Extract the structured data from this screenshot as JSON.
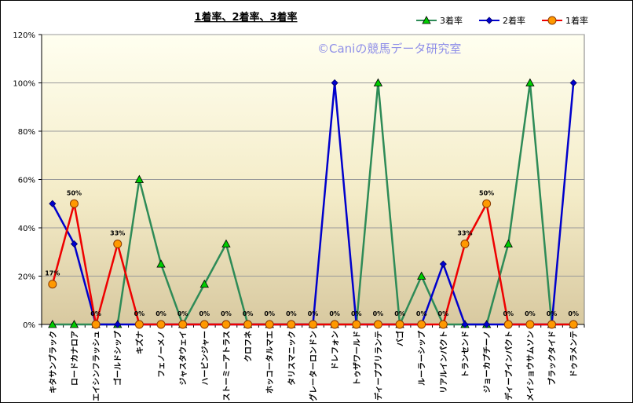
{
  "chart_data": {
    "type": "line",
    "title": "1着率、2着率、3着率",
    "watermark": "©Caniの競馬データ研究室",
    "ylim": [
      0,
      1.2
    ],
    "yticks": [
      0,
      0.2,
      0.4,
      0.6,
      0.8,
      1.0,
      1.2
    ],
    "ytick_labels": [
      "0%",
      "20%",
      "40%",
      "60%",
      "80%",
      "100%",
      "120%"
    ],
    "legend_position": "top-right",
    "grid": true,
    "categories": [
      "キタサンブラック",
      "ロードカナロア",
      "エイシンフラッシュ",
      "ゴールドシップ",
      "キズナ",
      "フェノーメノ",
      "ジャスタウェイ",
      "ハービンジャー",
      "ストーミーアトラス",
      "クロフネ",
      "ホッコータルマエ",
      "タリスマニック",
      "グレーターロンドン",
      "ドレフォン",
      "トゥザワールド",
      "ディープブリランテ",
      "バゴ",
      "ルーラーシップ",
      "リアルインパクト",
      "トランセンド",
      "ジョーカプチーノ",
      "ディープインパクト",
      "メイショウサムソン",
      "ブラックタイド",
      "ドゥラメンテ"
    ],
    "series": [
      {
        "name": "3着率",
        "color": "#2e8b57",
        "marker": "triangle",
        "marker_color": "#00cc00",
        "values": [
          0,
          0,
          0,
          0,
          0.6,
          0.25,
          0,
          0.1667,
          0.3333,
          0,
          0,
          0,
          0,
          0,
          0,
          1.0,
          0,
          0.2,
          0,
          0,
          0,
          0.3333,
          1.0,
          0,
          0
        ]
      },
      {
        "name": "2着率",
        "color": "#0000cc",
        "marker": "diamond",
        "marker_color": "#0000cc",
        "values": [
          0.5,
          0.3333,
          0,
          0,
          0,
          0,
          0,
          0,
          0,
          0,
          0,
          0,
          0,
          1.0,
          0,
          0,
          0,
          0,
          0.25,
          0,
          0,
          0,
          0,
          0,
          1.0
        ]
      },
      {
        "name": "1着率",
        "color": "#ee0000",
        "marker": "circle",
        "marker_color": "#ff9900",
        "values": [
          0.1667,
          0.5,
          0,
          0.3333,
          0,
          0,
          0,
          0,
          0,
          0,
          0,
          0,
          0,
          0,
          0,
          0,
          0,
          0,
          0,
          0.3333,
          0.5,
          0,
          0,
          0,
          0
        ]
      }
    ],
    "data_labels": [
      "17%",
      "50%",
      "0%",
      "33%",
      "0%",
      "0%",
      "0%",
      "0%",
      "0%",
      "0%",
      "0%",
      "0%",
      "0%",
      "0%",
      "0%",
      "0%",
      "0%",
      "0%",
      "0%",
      "33%",
      "50%",
      "0%",
      "0%",
      "0%",
      "0%"
    ]
  }
}
